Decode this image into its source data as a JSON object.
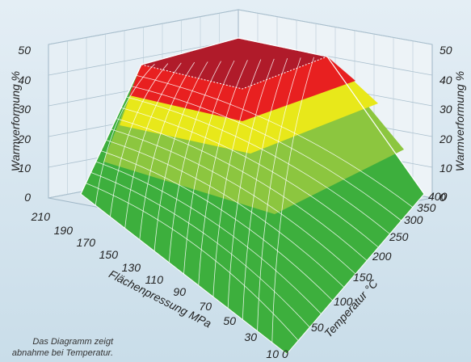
{
  "chart_data": {
    "type": "surface-3d",
    "zlabel": "Warmverformung %",
    "xlabel": "Flächenpressung MPa",
    "ylabel": "Temperatur °C",
    "z_ticks": [
      "0",
      "10",
      "20",
      "30",
      "40",
      "50"
    ],
    "x_ticks": [
      "210",
      "190",
      "170",
      "150",
      "130",
      "110",
      "90",
      "70",
      "50",
      "30",
      "10"
    ],
    "y_ticks": [
      "0",
      "50",
      "100",
      "150",
      "200",
      "250",
      "300",
      "350",
      "400"
    ],
    "zlim": [
      0,
      50
    ],
    "xlim": [
      210,
      10
    ],
    "ylim": [
      0,
      400
    ],
    "color_bands": [
      {
        "from": 0,
        "to": 10,
        "color": "#3daf3d"
      },
      {
        "from": 10,
        "to": 20,
        "color": "#8cc63f"
      },
      {
        "from": 20,
        "to": 30,
        "color": "#e8e81a"
      },
      {
        "from": 30,
        "to": 40,
        "color": "#e82020"
      },
      {
        "from": 40,
        "to": 50,
        "color": "#b01b2a"
      }
    ],
    "caption": [
      "Das Diagramm zeigt",
      "abnahme bei Temperatur."
    ]
  }
}
